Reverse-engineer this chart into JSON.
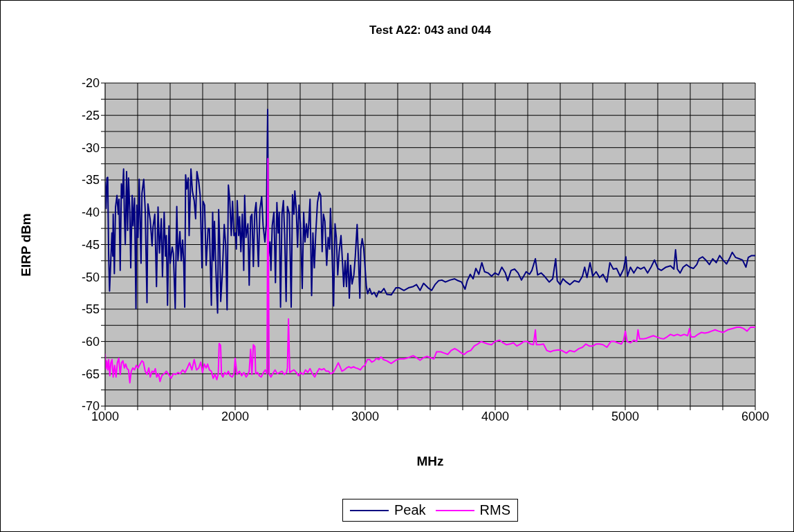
{
  "chart_data": {
    "type": "line",
    "title": "Test A22: 043 and 044",
    "xlabel": "MHz",
    "ylabel": "EIRP dBm",
    "xlim": [
      1000,
      6000
    ],
    "xticks": [
      1000,
      {
        "value": 1250,
        "label": null
      },
      {
        "value": 1500,
        "label": null
      },
      {
        "value": 1750,
        "label": null
      },
      2000,
      {
        "value": 2250,
        "label": null
      },
      {
        "value": 2500,
        "label": null
      },
      {
        "value": 2750,
        "label": null
      },
      3000,
      {
        "value": 3250,
        "label": null
      },
      {
        "value": 3500,
        "label": null
      },
      {
        "value": 3750,
        "label": null
      },
      4000,
      {
        "value": 4250,
        "label": null
      },
      {
        "value": 4500,
        "label": null
      },
      {
        "value": 4750,
        "label": null
      },
      5000,
      {
        "value": 5250,
        "label": null
      },
      {
        "value": 5500,
        "label": null
      },
      {
        "value": 5750,
        "label": null
      },
      6000
    ],
    "ylim": [
      -70,
      -20
    ],
    "yticks": [
      -70,
      {
        "value": -67.5,
        "label": null
      },
      -65,
      {
        "value": -62.5,
        "label": null
      },
      -60,
      {
        "value": -57.5,
        "label": null
      },
      -55,
      {
        "value": -52.5,
        "label": null
      },
      -50,
      {
        "value": -47.5,
        "label": null
      },
      -45,
      {
        "value": -42.5,
        "label": null
      },
      -40,
      {
        "value": -37.5,
        "label": null
      },
      -35,
      {
        "value": -32.5,
        "label": null
      },
      -30,
      {
        "value": -27.5,
        "label": null
      },
      -25,
      {
        "value": -22.5,
        "label": null
      },
      -20
    ],
    "grid": true,
    "legend": "bottom",
    "marker": "none",
    "line_style": "solid",
    "series": [
      {
        "name": "Peak",
        "color": "#000080",
        "x": [
          1000,
          1007,
          1014,
          1020,
          1027,
          1034,
          1044,
          1052,
          1059,
          1062,
          1071,
          1080,
          1091,
          1101,
          1107,
          1116,
          1125,
          1133,
          1142,
          1148,
          1155,
          1165,
          1173,
          1180,
          1190,
          1197,
          1208,
          1215,
          1226,
          1237,
          1244,
          1253,
          1262,
          1276,
          1283,
          1297,
          1308,
          1322,
          1329,
          1347,
          1361,
          1368,
          1382,
          1395,
          1407,
          1418,
          1432,
          1441,
          1454,
          1464,
          1471,
          1480,
          1491,
          1500,
          1516,
          1525,
          1539,
          1551,
          1560,
          1575,
          1585,
          1596,
          1605,
          1612,
          1619,
          1628,
          1639,
          1646,
          1660,
          1671,
          1685,
          1696,
          1706,
          1720,
          1731,
          1745,
          1753,
          1765,
          1777,
          1792,
          1802,
          1817,
          1827,
          1834,
          1841,
          1852,
          1865,
          1873,
          1881,
          1889,
          1902,
          1916,
          1927,
          1938,
          1948,
          1959,
          1970,
          1980,
          1991,
          2002,
          2009,
          2016,
          2027,
          2034,
          2044,
          2055,
          2066,
          2073,
          2083,
          2098,
          2108,
          2119,
          2129,
          2140,
          2151,
          2161,
          2172,
          2179,
          2190,
          2204,
          2215,
          2229,
          2240,
          2250,
          2257,
          2268,
          2275,
          2285,
          2298,
          2310,
          2321,
          2331,
          2339,
          2349,
          2360,
          2371,
          2381,
          2392,
          2402,
          2417,
          2431,
          2441,
          2452,
          2459,
          2470,
          2480,
          2491,
          2502,
          2516,
          2527,
          2537,
          2548,
          2558,
          2566,
          2576,
          2588,
          2598,
          2609,
          2619,
          2633,
          2647,
          2658,
          2669,
          2679,
          2690,
          2704,
          2715,
          2726,
          2733,
          2746,
          2757,
          2768,
          2778,
          2789,
          2800,
          2814,
          2824,
          2835,
          2846,
          2856,
          2867,
          2878,
          2888,
          2899,
          2913,
          2924,
          2938,
          2949,
          2959,
          2966,
          2977,
          2988,
          2998,
          3009,
          3019,
          3034,
          3051,
          3069,
          3087,
          3105,
          3122,
          3144,
          3167,
          3200,
          3236,
          3262,
          3298,
          3333,
          3369,
          3395,
          3422,
          3449,
          3484,
          3511,
          3537,
          3564,
          3590,
          3617,
          3652,
          3688,
          3715,
          3741,
          3768,
          3785,
          3808,
          3830,
          3851,
          3874,
          3897,
          3918,
          3945,
          3972,
          3998,
          4025,
          4051,
          4078,
          4096,
          4122,
          4149,
          4176,
          4202,
          4238,
          4264,
          4282,
          4309,
          4326,
          4353,
          4379,
          4415,
          4442,
          4465,
          4477,
          4500,
          4521,
          4547,
          4574,
          4609,
          4644,
          4671,
          4688,
          4706,
          4729,
          4750,
          4776,
          4803,
          4829,
          4859,
          4882,
          4908,
          4934,
          4961,
          4987,
          5005,
          5017,
          5040,
          5066,
          5093,
          5119,
          5146,
          5172,
          5198,
          5225,
          5251,
          5277,
          5313,
          5348,
          5374,
          5387,
          5401,
          5422,
          5445,
          5471,
          5497,
          5524,
          5550,
          5568,
          5594,
          5620,
          5647,
          5673,
          5700,
          5726,
          5752,
          5779,
          5805,
          5823,
          5849,
          5876,
          5902,
          5928,
          5946,
          5972,
          6000
        ],
        "values": [
          -35.3,
          -39.4,
          -34.7,
          -34.6,
          -46.4,
          -52.2,
          -47.2,
          -43.2,
          -46.8,
          -40.3,
          -49.5,
          -39.2,
          -37.4,
          -40.3,
          -38.0,
          -49.0,
          -35.6,
          -37.8,
          -33.3,
          -40.3,
          -45.0,
          -33.7,
          -42.8,
          -34.7,
          -40.0,
          -48.6,
          -37.4,
          -42.1,
          -37.8,
          -54.9,
          -38.9,
          -43.9,
          -34.9,
          -47.9,
          -37.1,
          -34.9,
          -39.6,
          -54.0,
          -38.7,
          -41.2,
          -45.2,
          -42.3,
          -40.3,
          -51.5,
          -39.2,
          -46.3,
          -41.0,
          -50.0,
          -40.0,
          -46.8,
          -43.6,
          -54.4,
          -42.1,
          -47.9,
          -45.4,
          -46.4,
          -54.9,
          -39.1,
          -47.5,
          -43.0,
          -47.5,
          -44.3,
          -48.2,
          -54.7,
          -34.2,
          -36.4,
          -34.7,
          -43.6,
          -33.3,
          -36.7,
          -38.2,
          -41.0,
          -33.7,
          -35.3,
          -37.4,
          -48.6,
          -38.3,
          -38.9,
          -48.2,
          -42.5,
          -42.5,
          -54.4,
          -40.0,
          -47.5,
          -41.4,
          -49.0,
          -55.6,
          -39.6,
          -44.6,
          -53.8,
          -49.3,
          -41.9,
          -45.0,
          -55.1,
          -35.8,
          -38.2,
          -43.6,
          -38.3,
          -43.6,
          -43.2,
          -45.7,
          -38.2,
          -43.6,
          -40.7,
          -46.1,
          -40.3,
          -49.0,
          -37.4,
          -43.9,
          -41.8,
          -51.3,
          -40.7,
          -40.3,
          -48.4,
          -40.0,
          -38.5,
          -44.6,
          -48.4,
          -39.6,
          -37.6,
          -42.1,
          -44.6,
          -41.8,
          -24.1,
          -46.8,
          -44.6,
          -49.0,
          -42.1,
          -40.0,
          -50.9,
          -38.5,
          -43.2,
          -40.0,
          -54.7,
          -40.3,
          -38.2,
          -43.6,
          -53.8,
          -39.1,
          -40.3,
          -54.7,
          -37.3,
          -40.3,
          -36.7,
          -39.6,
          -45.4,
          -38.9,
          -41.8,
          -51.8,
          -40.0,
          -44.6,
          -41.8,
          -43.9,
          -41.8,
          -38.0,
          -52.9,
          -43.2,
          -48.6,
          -43.6,
          -38.5,
          -36.9,
          -37.4,
          -46.1,
          -40.3,
          -41.4,
          -48.2,
          -43.9,
          -45.7,
          -39.4,
          -46.8,
          -54.5,
          -41.8,
          -43.9,
          -49.7,
          -46.1,
          -43.6,
          -47.2,
          -51.5,
          -47.5,
          -51.5,
          -46.4,
          -53.3,
          -48.2,
          -51.1,
          -49.7,
          -46.8,
          -41.9,
          -47.5,
          -53.3,
          -45.7,
          -44.1,
          -45.4,
          -48.2,
          -51.5,
          -52.6,
          -51.8,
          -52.7,
          -52.4,
          -53.1,
          -52.2,
          -52.4,
          -51.8,
          -52.7,
          -52.8,
          -51.7,
          -51.7,
          -52.1,
          -51.7,
          -51.5,
          -51.2,
          -52.1,
          -51.0,
          -51.7,
          -52.1,
          -51.2,
          -50.6,
          -50.5,
          -50.8,
          -50.5,
          -50.3,
          -50.6,
          -50.8,
          -51.9,
          -50.6,
          -49.6,
          -50.3,
          -48.7,
          -49.6,
          -47.8,
          -49.2,
          -49.4,
          -49.9,
          -49.4,
          -49.7,
          -48.5,
          -49.4,
          -50.6,
          -49.0,
          -48.8,
          -49.4,
          -50.5,
          -49.2,
          -49.6,
          -49.0,
          -47.2,
          -49.7,
          -49.4,
          -49.9,
          -50.8,
          -50.3,
          -47.2,
          -50.6,
          -51.2,
          -50.3,
          -50.8,
          -51.2,
          -50.6,
          -50.8,
          -49.9,
          -48.5,
          -50.1,
          -47.8,
          -49.9,
          -49.2,
          -50.1,
          -49.6,
          -50.8,
          -47.8,
          -48.8,
          -48.7,
          -49.9,
          -48.8,
          -46.9,
          -49.9,
          -48.5,
          -49.4,
          -48.5,
          -48.8,
          -48.5,
          -49.4,
          -48.5,
          -47.4,
          -48.7,
          -49.0,
          -48.5,
          -48.3,
          -48.8,
          -45.8,
          -48.8,
          -49.4,
          -48.5,
          -48.1,
          -48.5,
          -48.7,
          -48.1,
          -47.2,
          -46.9,
          -47.4,
          -48.1,
          -47.2,
          -47.8,
          -46.7,
          -47.4,
          -48.0,
          -47.0,
          -46.2,
          -47.0,
          -47.2,
          -47.4,
          -48.5,
          -47.0,
          -46.7,
          -46.7
        ]
      },
      {
        "name": "RMS",
        "color": "#ff00ff",
        "x": [
          1000,
          1005,
          1012,
          1020,
          1027,
          1036,
          1044,
          1053,
          1062,
          1073,
          1084,
          1094,
          1105,
          1116,
          1126,
          1137,
          1148,
          1158,
          1169,
          1180,
          1190,
          1201,
          1213,
          1226,
          1240,
          1254,
          1269,
          1283,
          1294,
          1308,
          1322,
          1336,
          1347,
          1361,
          1375,
          1386,
          1397,
          1411,
          1422,
          1436,
          1454,
          1471,
          1489,
          1507,
          1525,
          1543,
          1560,
          1578,
          1596,
          1614,
          1632,
          1649,
          1667,
          1685,
          1703,
          1720,
          1735,
          1749,
          1763,
          1777,
          1788,
          1802,
          1817,
          1831,
          1845,
          1859,
          1870,
          1877,
          1888,
          1895,
          1906,
          1920,
          1934,
          1948,
          1962,
          1977,
          1991,
          2000,
          2014,
          2032,
          2050,
          2067,
          2085,
          2098,
          2108,
          2119,
          2129,
          2140,
          2151,
          2158,
          2172,
          2186,
          2200,
          2218,
          2232,
          2245,
          2252,
          2261,
          2275,
          2289,
          2307,
          2324,
          2342,
          2360,
          2378,
          2395,
          2402,
          2410,
          2420,
          2434,
          2452,
          2470,
          2488,
          2505,
          2523,
          2541,
          2558,
          2576,
          2594,
          2612,
          2629,
          2647,
          2665,
          2683,
          2700,
          2718,
          2736,
          2754,
          2771,
          2793,
          2807,
          2821,
          2839,
          2856,
          2874,
          2892,
          2910,
          2927,
          2945,
          2963,
          2981,
          2998,
          3016,
          3034,
          3051,
          3069,
          3087,
          3105,
          3122,
          3140,
          3167,
          3200,
          3236,
          3262,
          3298,
          3333,
          3369,
          3395,
          3422,
          3449,
          3475,
          3502,
          3528,
          3549,
          3581,
          3608,
          3635,
          3661,
          3688,
          3715,
          3741,
          3762,
          3785,
          3812,
          3839,
          3865,
          3892,
          3918,
          3945,
          3972,
          3998,
          4034,
          4060,
          4087,
          4113,
          4140,
          4166,
          4193,
          4220,
          4246,
          4273,
          4294,
          4309,
          4317,
          4344,
          4371,
          4397,
          4424,
          4450,
          4486,
          4512,
          4547,
          4574,
          4609,
          4644,
          4671,
          4697,
          4723,
          4750,
          4776,
          4803,
          4829,
          4859,
          4890,
          4917,
          4943,
          4970,
          4987,
          5001,
          5014,
          5040,
          5066,
          5088,
          5098,
          5110,
          5137,
          5163,
          5190,
          5216,
          5242,
          5269,
          5295,
          5321,
          5348,
          5374,
          5401,
          5427,
          5453,
          5480,
          5494,
          5506,
          5533,
          5559,
          5585,
          5612,
          5638,
          5664,
          5691,
          5717,
          5752,
          5788,
          5823,
          5858,
          5884,
          5911,
          5937,
          5963,
          6000
        ],
        "values": [
          -61.9,
          -64.2,
          -63.0,
          -64.4,
          -62.8,
          -65.3,
          -63.3,
          -62.8,
          -65.5,
          -63.7,
          -65.5,
          -63.3,
          -62.6,
          -65.1,
          -63.3,
          -63.0,
          -64.1,
          -63.5,
          -64.2,
          -64.4,
          -66.4,
          -64.6,
          -64.1,
          -64.4,
          -63.7,
          -64.1,
          -63.5,
          -63.0,
          -63.2,
          -64.6,
          -65.1,
          -64.1,
          -65.5,
          -64.6,
          -64.8,
          -64.2,
          -65.5,
          -65.0,
          -66.2,
          -65.3,
          -65.0,
          -64.6,
          -65.1,
          -65.7,
          -65.0,
          -65.1,
          -64.8,
          -65.0,
          -64.4,
          -64.8,
          -64.1,
          -63.3,
          -64.4,
          -62.8,
          -64.4,
          -64.1,
          -63.2,
          -64.8,
          -63.5,
          -64.1,
          -63.5,
          -64.4,
          -64.6,
          -65.7,
          -65.1,
          -65.9,
          -65.0,
          -60.3,
          -60.6,
          -65.1,
          -65.5,
          -64.8,
          -65.1,
          -64.6,
          -65.3,
          -65.5,
          -65.0,
          -62.6,
          -65.1,
          -64.6,
          -65.3,
          -64.8,
          -65.5,
          -65.1,
          -64.6,
          -61.2,
          -65.1,
          -60.5,
          -60.8,
          -65.0,
          -64.8,
          -65.3,
          -65.5,
          -64.8,
          -64.4,
          -65.0,
          -31.7,
          -65.0,
          -65.5,
          -65.0,
          -64.4,
          -65.0,
          -64.8,
          -64.6,
          -65.1,
          -64.8,
          -64.1,
          -56.5,
          -64.8,
          -64.6,
          -64.4,
          -64.8,
          -65.3,
          -64.8,
          -65.1,
          -64.4,
          -64.8,
          -64.2,
          -65.0,
          -65.5,
          -64.8,
          -64.2,
          -64.4,
          -64.2,
          -64.6,
          -64.6,
          -65.0,
          -64.8,
          -64.2,
          -63.3,
          -63.9,
          -64.6,
          -64.4,
          -64.1,
          -63.9,
          -64.1,
          -63.9,
          -64.1,
          -64.2,
          -64.4,
          -63.9,
          -63.7,
          -62.8,
          -62.8,
          -63.2,
          -63.0,
          -62.6,
          -62.8,
          -62.4,
          -62.8,
          -63.0,
          -63.4,
          -62.9,
          -62.7,
          -62.7,
          -62.5,
          -62.2,
          -62.5,
          -62.9,
          -62.5,
          -62.3,
          -62.5,
          -62.7,
          -61.6,
          -61.6,
          -61.8,
          -62.0,
          -61.4,
          -61.1,
          -61.4,
          -61.8,
          -62.0,
          -61.6,
          -61.4,
          -60.7,
          -60.4,
          -60.0,
          -60.2,
          -60.4,
          -60.5,
          -60.0,
          -59.8,
          -60.2,
          -60.5,
          -60.4,
          -60.2,
          -60.7,
          -60.4,
          -60.0,
          -60.0,
          -60.4,
          -60.5,
          -58.2,
          -60.5,
          -60.5,
          -60.4,
          -61.4,
          -61.6,
          -61.4,
          -61.3,
          -61.4,
          -61.8,
          -61.4,
          -61.6,
          -61.1,
          -60.9,
          -60.4,
          -60.7,
          -60.7,
          -60.4,
          -60.4,
          -60.5,
          -60.9,
          -60.0,
          -60.0,
          -60.2,
          -60.4,
          -59.8,
          -58.4,
          -60.0,
          -60.2,
          -59.8,
          -60.0,
          -58.2,
          -59.6,
          -59.6,
          -59.5,
          -59.3,
          -59.1,
          -59.3,
          -59.5,
          -59.6,
          -59.3,
          -58.9,
          -59.1,
          -58.9,
          -59.1,
          -58.9,
          -59.1,
          -58.0,
          -59.3,
          -59.3,
          -58.9,
          -58.6,
          -58.7,
          -58.6,
          -58.4,
          -58.2,
          -58.4,
          -58.6,
          -58.2,
          -58.0,
          -57.8,
          -57.8,
          -58.0,
          -58.4,
          -57.8,
          -57.8
        ]
      }
    ]
  }
}
